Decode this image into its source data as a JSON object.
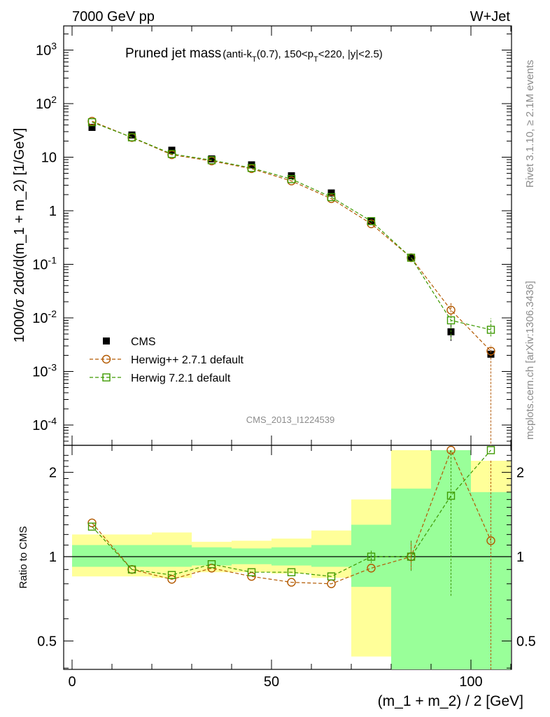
{
  "header": {
    "left": "7000 GeV pp",
    "right": "W+Jet"
  },
  "title": {
    "main": "Pruned jet mass",
    "sub": "(anti-k_T(0.7), 150<p_T<220, |y|<2.5)"
  },
  "side_labels": {
    "version": "Rivet 3.1.10, ≥ 2.1M events",
    "source": "mcplots.cern.ch [arXiv:1306.3436]"
  },
  "analysis_id": "CMS_2013_I1224539",
  "axes": {
    "ylabel_top": "1000/σ 2dσ/d(m_1 + m_2) [1/GeV]",
    "ylabel_bottom": "Ratio to CMS",
    "xlabel": "(m_1 + m_2) / 2 [GeV]"
  },
  "chart_data": [
    {
      "type": "scatter",
      "panel": "main",
      "yscale": "log",
      "xlim": [
        -2,
        110
      ],
      "ylim": [
        5e-05,
        3000
      ],
      "yticks": [
        {
          "v": 0.0001,
          "base": "10",
          "exp": "-4"
        },
        {
          "v": 0.001,
          "base": "10",
          "exp": "-3"
        },
        {
          "v": 0.01,
          "base": "10",
          "exp": "-2"
        },
        {
          "v": 0.1,
          "base": "10",
          "exp": "-1"
        },
        {
          "v": 1,
          "base": "1",
          "exp": ""
        },
        {
          "v": 10,
          "base": "10",
          "exp": ""
        },
        {
          "v": 100,
          "base": "10",
          "exp": "2"
        },
        {
          "v": 1000,
          "base": "10",
          "exp": "3"
        }
      ],
      "x": [
        5,
        15,
        25,
        35,
        45,
        55,
        65,
        75,
        85,
        95,
        105
      ],
      "series": [
        {
          "name": "CMS",
          "color": "#000000",
          "marker": "filled-square",
          "values": [
            36,
            26,
            13.5,
            9.3,
            7.2,
            4.5,
            2.15,
            0.64,
            0.135,
            0.0055,
            0.0021
          ]
        },
        {
          "name": "Herwig++ 2.7.1 default",
          "color": "#b35900",
          "marker": "open-circle",
          "values": [
            47,
            23.3,
            11.1,
            8.5,
            6.1,
            3.6,
            1.68,
            0.57,
            0.133,
            0.014,
            0.0024
          ]
        },
        {
          "name": "Herwig 7.2.1 default",
          "color": "#3d9900",
          "marker": "open-square",
          "values": [
            45,
            23.5,
            11.5,
            8.8,
            6.3,
            3.9,
            1.8,
            0.64,
            0.133,
            0.009,
            0.006
          ]
        }
      ],
      "legend": "left"
    },
    {
      "type": "scatter",
      "panel": "ratio",
      "xlim": [
        -2,
        110
      ],
      "ylim": [
        0.38,
        2.4
      ],
      "yticks": [
        0.5,
        1,
        2
      ],
      "xticks": [
        0,
        50,
        100
      ],
      "bin_edges": [
        0,
        10,
        20,
        30,
        40,
        50,
        60,
        70,
        80,
        90,
        100,
        110
      ],
      "band_green": [
        [
          0.92,
          1.1
        ],
        [
          0.92,
          1.1
        ],
        [
          0.92,
          1.1
        ],
        [
          0.93,
          1.08
        ],
        [
          0.94,
          1.07
        ],
        [
          0.93,
          1.08
        ],
        [
          0.92,
          1.1
        ],
        [
          0.78,
          1.3
        ],
        [
          0.38,
          1.75
        ],
        [
          0.38,
          2.4
        ],
        [
          0.38,
          1.7
        ]
      ],
      "band_yellow": [
        [
          0.85,
          1.2
        ],
        [
          0.85,
          1.2
        ],
        [
          0.84,
          1.22
        ],
        [
          0.88,
          1.13
        ],
        [
          0.88,
          1.14
        ],
        [
          0.87,
          1.16
        ],
        [
          0.84,
          1.24
        ],
        [
          0.44,
          1.6
        ],
        [
          0.38,
          2.4
        ],
        [
          0.38,
          2.4
        ],
        [
          0.38,
          2.2
        ]
      ],
      "series": [
        {
          "name": "Herwig++ 2.7.1 default",
          "color": "#b35900",
          "marker": "open-circle",
          "values": [
            1.32,
            0.9,
            0.83,
            0.91,
            0.85,
            0.81,
            0.8,
            0.91,
            1.0,
            2.4,
            1.14
          ]
        },
        {
          "name": "Herwig 7.2.1 default",
          "color": "#3d9900",
          "marker": "open-square",
          "values": [
            1.28,
            0.9,
            0.86,
            0.94,
            0.88,
            0.88,
            0.85,
            1.0,
            1.0,
            1.65,
            2.4
          ]
        }
      ]
    }
  ]
}
